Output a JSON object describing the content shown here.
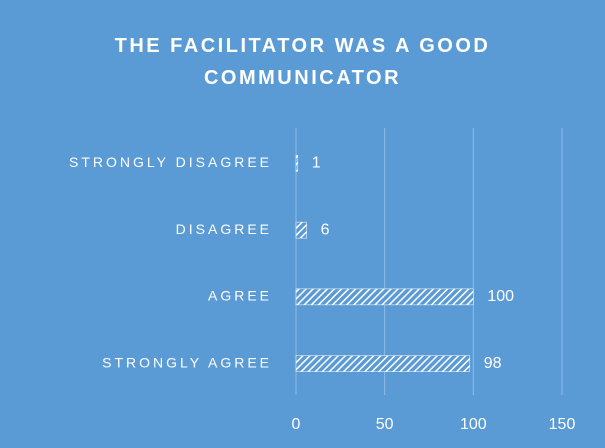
{
  "chart_data": {
    "type": "bar",
    "orientation": "horizontal",
    "title": "THE FACILITATOR WAS A GOOD COMMUNICATOR",
    "categories": [
      "STRONGLY DISAGREE",
      "DISAGREE",
      "AGREE",
      "STRONGLY AGREE"
    ],
    "values": [
      1,
      6,
      100,
      98
    ],
    "color": "#ffffff",
    "xlim": [
      0,
      150
    ],
    "xticks": [
      0,
      50,
      100,
      150
    ],
    "grid": true
  }
}
